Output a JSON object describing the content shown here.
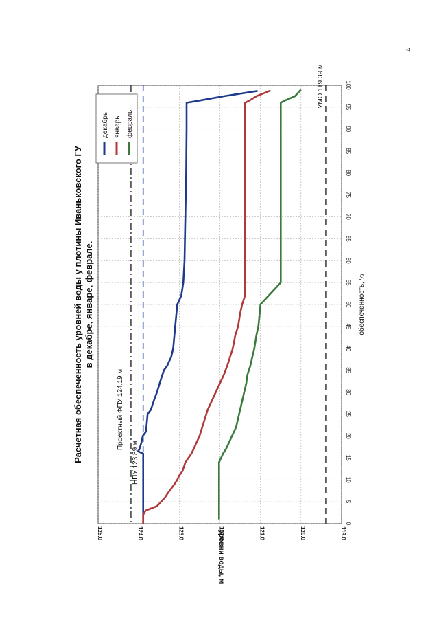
{
  "page": {
    "number": "7"
  },
  "chart_data": {
    "type": "line",
    "title": "Расчетная обеспеченность уровней воды у плотины Иваньковского ГУ в декабре, январе, феврале.",
    "xlabel": "обеспеченность, %",
    "ylabel": "уровни воды, м",
    "xlim": [
      0,
      100
    ],
    "ylim": [
      119.0,
      125.0
    ],
    "x_ticks": [
      "0",
      "5",
      "10",
      "15",
      "20",
      "25",
      "30",
      "35",
      "40",
      "45",
      "50",
      "55",
      "60",
      "65",
      "70",
      "75",
      "80",
      "85",
      "90",
      "95",
      "100"
    ],
    "y_ticks": [
      "119.0",
      "120.0",
      "121.0",
      "122.0",
      "123.0",
      "124.0",
      "125.0"
    ],
    "grid": true,
    "legend_position": "top-right",
    "series": [
      {
        "name": "декабрь",
        "color": "#1f3a8a",
        "points": [
          [
            0,
            123.89
          ],
          [
            16,
            123.89
          ],
          [
            16.5,
            124.02
          ],
          [
            17,
            123.98
          ],
          [
            18,
            123.95
          ],
          [
            19,
            123.92
          ],
          [
            20,
            123.9
          ],
          [
            21,
            123.82
          ],
          [
            25,
            123.78
          ],
          [
            26,
            123.7
          ],
          [
            28,
            123.63
          ],
          [
            30,
            123.55
          ],
          [
            33,
            123.45
          ],
          [
            35,
            123.38
          ],
          [
            36,
            123.3
          ],
          [
            37,
            123.25
          ],
          [
            38,
            123.2
          ],
          [
            40,
            123.15
          ],
          [
            45,
            123.1
          ],
          [
            50,
            123.05
          ],
          [
            52,
            122.95
          ],
          [
            55,
            122.9
          ],
          [
            60,
            122.87
          ],
          [
            70,
            122.85
          ],
          [
            80,
            122.83
          ],
          [
            90,
            122.82
          ],
          [
            95,
            122.82
          ],
          [
            96,
            122.82
          ],
          [
            96.5,
            122.5
          ],
          [
            97.5,
            121.9
          ],
          [
            98.7,
            121.07
          ]
        ]
      },
      {
        "name": "январь",
        "color": "#b03a3a",
        "points": [
          [
            0,
            123.89
          ],
          [
            2,
            123.89
          ],
          [
            3,
            123.83
          ],
          [
            4,
            123.55
          ],
          [
            5,
            123.45
          ],
          [
            6,
            123.35
          ],
          [
            7,
            123.28
          ],
          [
            8,
            123.2
          ],
          [
            9,
            123.12
          ],
          [
            10,
            123.05
          ],
          [
            11,
            123.0
          ],
          [
            12,
            122.92
          ],
          [
            14,
            122.85
          ],
          [
            16,
            122.7
          ],
          [
            18,
            122.6
          ],
          [
            20,
            122.5
          ],
          [
            23,
            122.4
          ],
          [
            26,
            122.3
          ],
          [
            28,
            122.2
          ],
          [
            30,
            122.1
          ],
          [
            32,
            122.0
          ],
          [
            34,
            121.9
          ],
          [
            36,
            121.82
          ],
          [
            38,
            121.75
          ],
          [
            40,
            121.68
          ],
          [
            43,
            121.62
          ],
          [
            45,
            121.55
          ],
          [
            48,
            121.5
          ],
          [
            50,
            121.45
          ],
          [
            52,
            121.38
          ],
          [
            55,
            121.38
          ],
          [
            60,
            121.38
          ],
          [
            70,
            121.38
          ],
          [
            80,
            121.38
          ],
          [
            90,
            121.38
          ],
          [
            96,
            121.38
          ],
          [
            96.5,
            121.27
          ],
          [
            97.5,
            121.1
          ],
          [
            98.8,
            120.75
          ]
        ]
      },
      {
        "name": "февраль",
        "color": "#3a7a3a",
        "points": [
          [
            1,
            122.02
          ],
          [
            14,
            122.02
          ],
          [
            15,
            121.97
          ],
          [
            16,
            121.92
          ],
          [
            17,
            121.85
          ],
          [
            18,
            121.8
          ],
          [
            19,
            121.75
          ],
          [
            20,
            121.7
          ],
          [
            21,
            121.65
          ],
          [
            22,
            121.6
          ],
          [
            24,
            121.55
          ],
          [
            26,
            121.5
          ],
          [
            28,
            121.45
          ],
          [
            30,
            121.4
          ],
          [
            32,
            121.35
          ],
          [
            34,
            121.32
          ],
          [
            36,
            121.25
          ],
          [
            38,
            121.2
          ],
          [
            40,
            121.15
          ],
          [
            43,
            121.1
          ],
          [
            45,
            121.05
          ],
          [
            48,
            121.02
          ],
          [
            50,
            121.0
          ],
          [
            55,
            120.5
          ],
          [
            60,
            120.5
          ],
          [
            70,
            120.5
          ],
          [
            80,
            120.5
          ],
          [
            90,
            120.5
          ],
          [
            96,
            120.5
          ],
          [
            96.5,
            120.4
          ],
          [
            97.5,
            120.15
          ],
          [
            99,
            120.0
          ]
        ]
      }
    ],
    "reference_lines": [
      {
        "label": "Проектный ФПУ 124,19 м",
        "value": 124.19,
        "style": "dashdot",
        "color": "#444444"
      },
      {
        "label": "НПУ 123.89 м",
        "value": 123.89,
        "style": "dashed",
        "color": "#2a4fa0"
      },
      {
        "label": "УМО 119.39 м",
        "value": 119.39,
        "style": "dashed",
        "color": "#444444"
      }
    ]
  }
}
